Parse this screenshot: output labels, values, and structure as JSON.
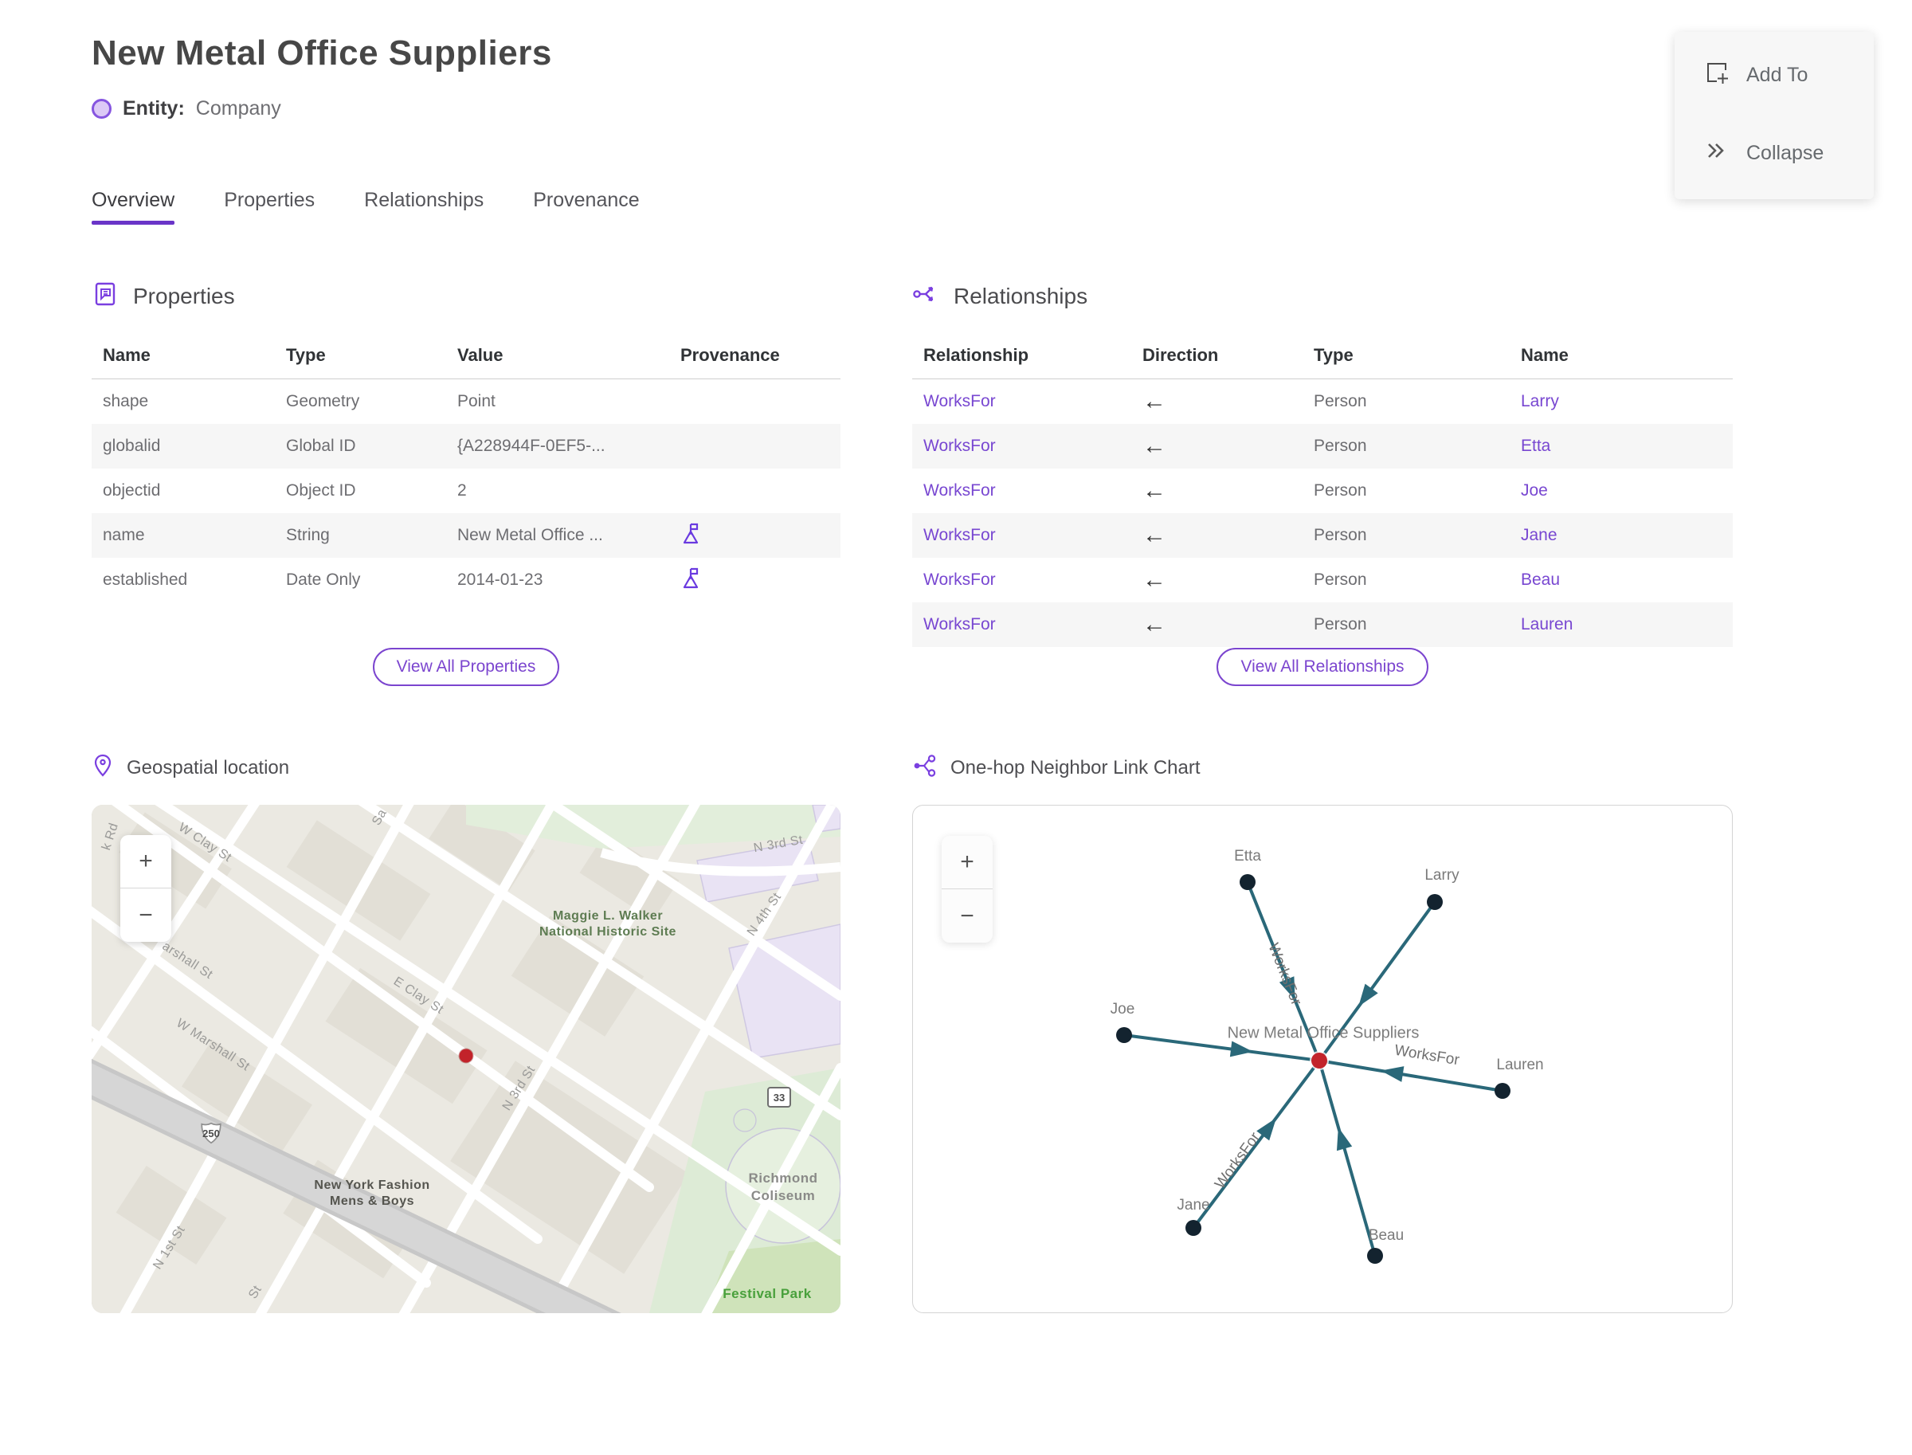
{
  "header": {
    "title": "New Metal Office Suppliers",
    "entity_label": "Entity:",
    "entity_type": "Company"
  },
  "actions": {
    "add_to": "Add To",
    "collapse": "Collapse"
  },
  "tabs": [
    {
      "label": "Overview",
      "active": true
    },
    {
      "label": "Properties",
      "active": false
    },
    {
      "label": "Relationships",
      "active": false
    },
    {
      "label": "Provenance",
      "active": false
    }
  ],
  "properties_section": {
    "title": "Properties",
    "columns": [
      "Name",
      "Type",
      "Value",
      "Provenance"
    ],
    "rows": [
      {
        "name": "shape",
        "type": "Geometry",
        "value": "Point",
        "provenance": false
      },
      {
        "name": "globalid",
        "type": "Global ID",
        "value": "{A228944F-0EF5-...",
        "provenance": false
      },
      {
        "name": "objectid",
        "type": "Object ID",
        "value": "2",
        "provenance": false
      },
      {
        "name": "name",
        "type": "String",
        "value": "New Metal Office ...",
        "provenance": true
      },
      {
        "name": "established",
        "type": "Date Only",
        "value": "2014-01-23",
        "provenance": true
      }
    ],
    "view_all": "View All Properties"
  },
  "relationships_section": {
    "title": "Relationships",
    "columns": [
      "Relationship",
      "Direction",
      "Type",
      "Name"
    ],
    "rows": [
      {
        "relationship": "WorksFor",
        "direction": "←",
        "type": "Person",
        "name": "Larry"
      },
      {
        "relationship": "WorksFor",
        "direction": "←",
        "type": "Person",
        "name": "Etta"
      },
      {
        "relationship": "WorksFor",
        "direction": "←",
        "type": "Person",
        "name": "Joe"
      },
      {
        "relationship": "WorksFor",
        "direction": "←",
        "type": "Person",
        "name": "Jane"
      },
      {
        "relationship": "WorksFor",
        "direction": "←",
        "type": "Person",
        "name": "Beau"
      },
      {
        "relationship": "WorksFor",
        "direction": "←",
        "type": "Person",
        "name": "Lauren"
      }
    ],
    "view_all": "View All Relationships"
  },
  "map_section": {
    "title": "Geospatial location",
    "zoom_in": "+",
    "zoom_out": "−",
    "labels": [
      {
        "text": "k Rd"
      },
      {
        "text": "W Clay St"
      },
      {
        "text": "Sa"
      },
      {
        "text": "arshall St"
      },
      {
        "text": "W Marshall St"
      },
      {
        "text": "E Clay St"
      },
      {
        "text": "N 3rd St"
      },
      {
        "text": "N 4th St"
      },
      {
        "text": "Maggie L. Walker National Historic Site"
      },
      {
        "text": "N 3rd St"
      },
      {
        "text": "New York Fashion Mens & Boys"
      },
      {
        "text": "N 1st St"
      },
      {
        "text": "Richmond Coliseum"
      },
      {
        "text": "Festival Park"
      },
      {
        "text": "St"
      }
    ],
    "shields": [
      {
        "label": "250"
      },
      {
        "label": "33"
      }
    ]
  },
  "link_chart_section": {
    "title": "One-hop Neighbor Link Chart",
    "zoom_in": "+",
    "zoom_out": "−",
    "center_node": {
      "name": "New Metal Office Suppliers"
    },
    "nodes": [
      {
        "name": "Etta"
      },
      {
        "name": "Larry"
      },
      {
        "name": "Joe"
      },
      {
        "name": "Lauren"
      },
      {
        "name": "Jane"
      },
      {
        "name": "Beau"
      }
    ],
    "edge_labels": [
      {
        "text": "WorksFor"
      },
      {
        "text": "WorksFor"
      },
      {
        "text": "WorksFor"
      }
    ]
  },
  "colors": {
    "accent_purple": "#7847d1",
    "tab_underline": "#6a35c8",
    "edge_teal": "#2a6879",
    "node_dark": "#13232f",
    "node_red": "#c2242b",
    "row_alt": "#f6f6f6"
  }
}
